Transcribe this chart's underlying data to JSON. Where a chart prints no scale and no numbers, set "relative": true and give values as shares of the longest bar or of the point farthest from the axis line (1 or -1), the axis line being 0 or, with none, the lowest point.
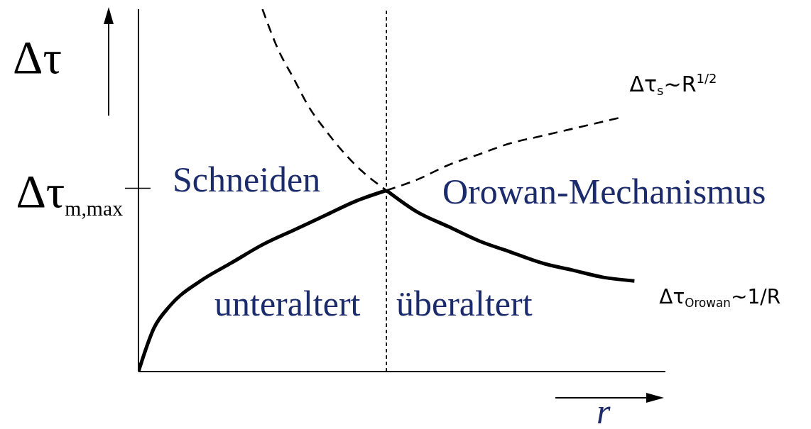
{
  "chart_data": {
    "type": "line",
    "relative": true,
    "xlabel": "r",
    "ylabel": "Δτ",
    "categories": [
      null,
      null,
      null,
      null,
      null,
      null,
      null,
      null,
      null,
      null,
      null,
      null,
      null,
      null,
      null,
      null,
      null,
      null,
      null,
      null,
      null,
      null,
      null,
      null,
      null,
      null,
      null,
      null,
      null,
      null,
      null,
      null,
      null,
      null,
      null
    ],
    "series": [
      {
        "color": "#000000",
        "line_style": "solid",
        "values": [
          0,
          0.12,
          0.18,
          null,
          0.25,
          null,
          0.3,
          null,
          0.35,
          null,
          0.39,
          null,
          0.43,
          null,
          0.47,
          null,
          0.5,
          null,
          null,
          null,
          null,
          null,
          null,
          null,
          null,
          null,
          null,
          null,
          null,
          null,
          null,
          null,
          null,
          null,
          null
        ]
      },
      {
        "name": "Δτ$_{s}$~R$^{1/2}$",
        "color": "#000000",
        "line_style": "dashed",
        "values": [
          null,
          null,
          null,
          null,
          null,
          null,
          null,
          null,
          null,
          null,
          null,
          null,
          null,
          null,
          null,
          null,
          0.5,
          null,
          0.53,
          null,
          0.57,
          null,
          0.6,
          null,
          0.63,
          null,
          0.65,
          null,
          0.67,
          null,
          0.69,
          0.7,
          null,
          null,
          null
        ]
      },
      {
        "color": "#000000",
        "line_style": "dashed",
        "values": [
          null,
          null,
          null,
          null,
          null,
          null,
          null,
          null,
          1,
          0.89,
          0.81,
          0.73,
          0.67,
          null,
          0.57,
          null,
          0.5,
          null,
          null,
          null,
          null,
          null,
          null,
          null,
          null,
          null,
          null,
          null,
          null,
          null,
          null,
          null,
          null,
          null,
          null
        ]
      },
      {
        "name": "Δτ$_{Orowan}$~1/R",
        "color": "#000000",
        "line_style": "solid",
        "values": [
          null,
          null,
          null,
          null,
          null,
          null,
          null,
          null,
          null,
          null,
          null,
          null,
          null,
          null,
          null,
          null,
          0.5,
          null,
          0.44,
          null,
          0.4,
          null,
          0.36,
          null,
          0.33,
          null,
          0.3,
          null,
          0.28,
          null,
          0.26,
          null,
          0.25,
          null,
          null
        ]
      }
    ],
    "annotations": [
      "Schneiden",
      "Orowan-Mechanismus",
      "unteraltert",
      "überaltert",
      "Δτ$_{m,max}$"
    ]
  }
}
